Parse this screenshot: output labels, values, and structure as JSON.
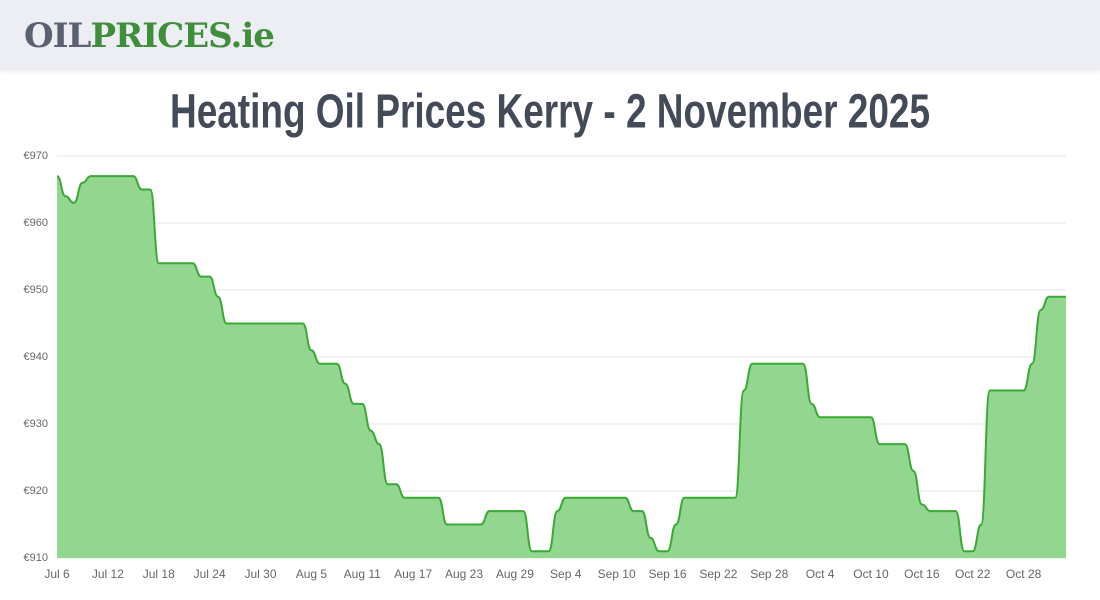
{
  "header": {
    "logo": {
      "part1": "OIL",
      "part2": "PRICES",
      "part3": ".ie"
    }
  },
  "chart_data": {
    "type": "area",
    "title": "Heating Oil Prices Kerry - 2 November 2025",
    "categories": [
      "Jul 6",
      null,
      null,
      null,
      null,
      null,
      "Jul 12",
      null,
      null,
      null,
      null,
      null,
      "Jul 18",
      null,
      null,
      null,
      null,
      null,
      "Jul 24",
      null,
      null,
      null,
      null,
      null,
      "Jul 30",
      null,
      null,
      null,
      null,
      null,
      "Aug 5",
      null,
      null,
      null,
      null,
      null,
      "Aug 11",
      null,
      null,
      null,
      null,
      null,
      "Aug 17",
      null,
      null,
      null,
      null,
      null,
      "Aug 23",
      null,
      null,
      null,
      null,
      null,
      "Aug 29",
      null,
      null,
      null,
      null,
      null,
      "Sep 4",
      null,
      null,
      null,
      null,
      null,
      "Sep 10",
      null,
      null,
      null,
      null,
      null,
      "Sep 16",
      null,
      null,
      null,
      null,
      null,
      "Sep 22",
      null,
      null,
      null,
      null,
      null,
      "Sep 28",
      null,
      null,
      null,
      null,
      null,
      "Oct 4",
      null,
      null,
      null,
      null,
      null,
      "Oct 10",
      null,
      null,
      null,
      null,
      null,
      "Oct 16",
      null,
      null,
      null,
      null,
      null,
      "Oct 22",
      null,
      null,
      null,
      null,
      null,
      "Oct 28",
      null,
      null,
      null,
      null,
      null
    ],
    "series": [
      {
        "color": "#3aaa35",
        "fill": "#92d68f",
        "values": [
          967,
          964,
          963,
          966,
          967,
          967,
          967,
          967,
          967,
          967,
          965,
          965,
          954,
          954,
          954,
          954,
          954,
          952,
          952,
          949,
          945,
          945,
          945,
          945,
          945,
          945,
          945,
          945,
          945,
          945,
          941,
          939,
          939,
          939,
          936,
          933,
          933,
          929,
          927,
          921,
          921,
          919,
          919,
          919,
          919,
          919,
          915,
          915,
          915,
          915,
          915,
          917,
          917,
          917,
          917,
          917,
          911,
          911,
          911,
          917,
          919,
          919,
          919,
          919,
          919,
          919,
          919,
          919,
          917,
          917,
          913,
          911,
          911,
          915,
          919,
          919,
          919,
          919,
          919,
          919,
          919,
          935,
          939,
          939,
          939,
          939,
          939,
          939,
          939,
          933,
          931,
          931,
          931,
          931,
          931,
          931,
          931,
          927,
          927,
          927,
          927,
          923,
          918,
          917,
          917,
          917,
          917,
          911,
          911,
          915,
          935,
          935,
          935,
          935,
          935,
          939,
          947,
          949,
          949,
          949
        ]
      }
    ],
    "ylim": [
      910,
      970
    ],
    "yticks": [
      {
        "value": 910,
        "label": "€910"
      },
      {
        "value": 920,
        "label": "€920"
      },
      {
        "value": 930,
        "label": "€930"
      },
      {
        "value": 940,
        "label": "€940"
      },
      {
        "value": 950,
        "label": "€950"
      },
      {
        "value": 960,
        "label": "€960"
      },
      {
        "value": 970,
        "label": "€970"
      }
    ],
    "grid": true
  }
}
